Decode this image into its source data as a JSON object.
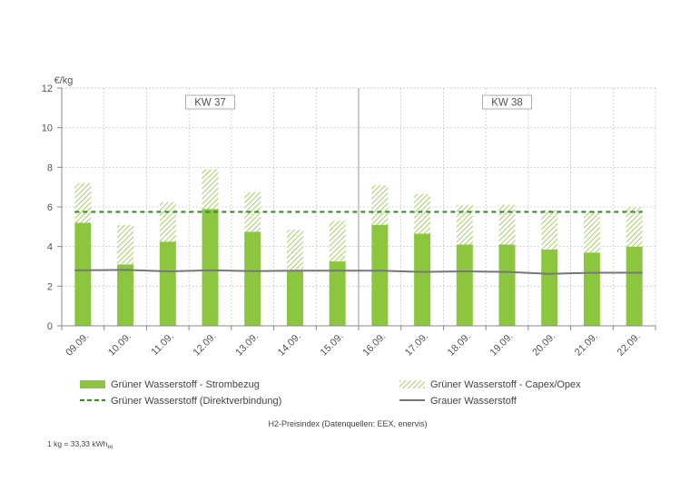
{
  "chart_data": {
    "type": "bar",
    "ylabel": "€/kg",
    "ylim": [
      0,
      12
    ],
    "yticks": [
      0,
      2,
      4,
      6,
      8,
      10,
      12
    ],
    "grid": true,
    "categories": [
      "09.09.",
      "10.09.",
      "11.09.",
      "12.09.",
      "13.09.",
      "14.09.",
      "15.09.",
      "16.09.",
      "17.09.",
      "18.09.",
      "19.09.",
      "20.09.",
      "21.09.",
      "22.09."
    ],
    "week_labels": [
      {
        "label": "KW 37",
        "from": 0,
        "to": 6
      },
      {
        "label": "KW 38",
        "from": 7,
        "to": 13
      }
    ],
    "series": [
      {
        "name": "Grüner Wasserstoff - Strombezug",
        "kind": "bar-solid",
        "color": "#8cc63f",
        "values": [
          5.2,
          3.1,
          4.25,
          5.9,
          4.75,
          2.8,
          3.25,
          5.1,
          4.65,
          4.1,
          4.1,
          3.85,
          3.7,
          4.0
        ]
      },
      {
        "name": "Grüner Wasserstoff - Capex/Opex",
        "kind": "bar-hatched",
        "color": "#8cc63f",
        "values": [
          2.0,
          2.0,
          2.0,
          2.0,
          2.0,
          2.05,
          2.05,
          2.0,
          2.0,
          2.0,
          2.0,
          2.0,
          2.05,
          2.0
        ]
      },
      {
        "name": "Grüner Wasserstoff (Direktverbindung)",
        "kind": "dashed-line",
        "color": "#3c8a2e",
        "values": [
          5.75,
          5.75,
          5.75,
          5.75,
          5.75,
          5.75,
          5.75,
          5.75,
          5.75,
          5.75,
          5.75,
          5.75,
          5.75,
          5.75
        ]
      },
      {
        "name": "Grauer Wasserstoff",
        "kind": "line",
        "color": "#777777",
        "values": [
          2.8,
          2.82,
          2.75,
          2.8,
          2.76,
          2.78,
          2.78,
          2.78,
          2.72,
          2.75,
          2.72,
          2.62,
          2.68,
          2.68
        ]
      }
    ],
    "caption": "H2-Preisindex (Datenquellen: EEX, enervis)"
  },
  "footnote": {
    "main": "1 kg = 33,33 kWh",
    "sub": "Hi"
  }
}
